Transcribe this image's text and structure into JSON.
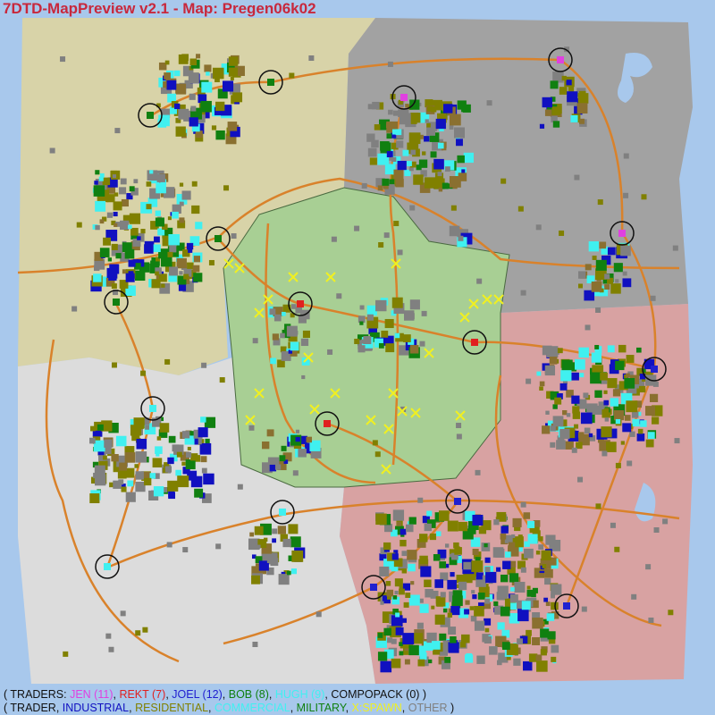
{
  "title": "7DTD-MapPreview v2.1 - Map: Pregen06k02",
  "legend": {
    "line1": {
      "open": "( TRADERS: ",
      "items": [
        {
          "label": "JEN (11)",
          "color": "#e040e0"
        },
        {
          "label": "REKT (7)",
          "color": "#e02020"
        },
        {
          "label": "JOEL (12)",
          "color": "#2020d0"
        },
        {
          "label": "BOB (8)",
          "color": "#108010"
        },
        {
          "label": "HUGH (9)",
          "color": "#40f0f0"
        }
      ],
      "compopack": "COMPOPACK (0)",
      "close": " )"
    },
    "line2": {
      "open": "( ",
      "items": [
        {
          "label": "TRADER",
          "color": "#111111"
        },
        {
          "label": "INDUSTRIAL",
          "color": "#1010c0"
        },
        {
          "label": "RESIDENTIAL",
          "color": "#808000"
        },
        {
          "label": "COMMERCIAL",
          "color": "#40f0f0"
        },
        {
          "label": "MILITARY",
          "color": "#108010"
        },
        {
          "label": "X:SPAWN",
          "color": "#f0f020"
        },
        {
          "label": "OTHER",
          "color": "#808080"
        }
      ],
      "close": " )"
    }
  },
  "colors": {
    "ocean": "#a8c8ec",
    "desert": "#d8d3a8",
    "snow": "#a2a2a2",
    "forest": "#a8cf94",
    "wasteland": "#dcdcdc",
    "burnt": "#d8a2a2",
    "road": "#d9822b"
  }
}
